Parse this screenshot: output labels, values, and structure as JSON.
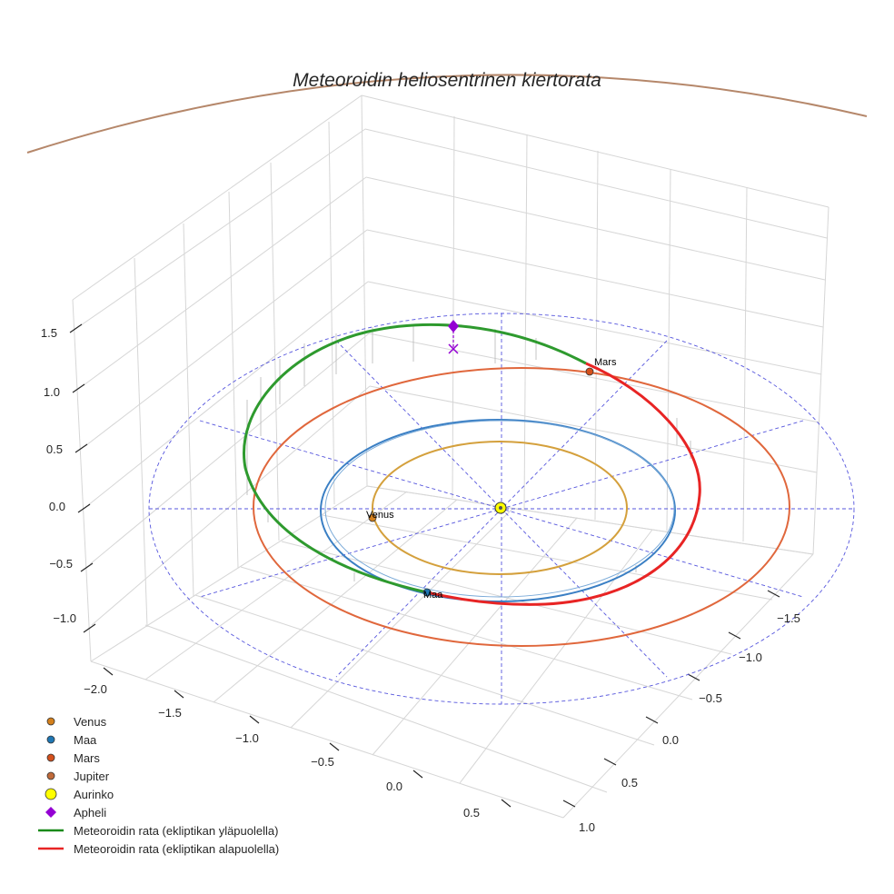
{
  "chart_data": {
    "type": "line3d",
    "title": "Meteoroidin heliosentrinen kiertorata",
    "axes": {
      "x": {
        "ticks": [
          "−2.0",
          "−1.5",
          "−1.0",
          "−0.5",
          "0.0",
          "0.5"
        ],
        "range": [
          -2.0,
          0.5
        ]
      },
      "y": {
        "ticks": [
          "−1.5",
          "−1.0",
          "−0.5",
          "0.0",
          "0.5",
          "1.0"
        ],
        "range": [
          -1.5,
          1.0
        ]
      },
      "z": {
        "ticks": [
          "1.5",
          "1.0",
          "0.5",
          "0.0",
          "−0.5",
          "−1.0"
        ],
        "range": [
          -1.0,
          1.5
        ]
      }
    },
    "series": [
      {
        "name": "Venus",
        "type": "orbit",
        "radius_au": 0.72,
        "color": "#d4a03c"
      },
      {
        "name": "Maa",
        "type": "orbit",
        "radius_au": 1.0,
        "color": "#3a7fc4"
      },
      {
        "name": "Mars",
        "type": "orbit",
        "radius_au": 1.52,
        "color": "#e0673c"
      },
      {
        "name": "Jupiter",
        "type": "orbit",
        "radius_au": 5.2,
        "color": "#b5876a"
      },
      {
        "name": "Meteoroidin rata (ekliptikan yläpuolella)",
        "color": "#2e9a2e"
      },
      {
        "name": "Meteoroidin rata (ekliptikan alapuolella)",
        "color": "#e82424"
      }
    ],
    "points": [
      {
        "name": "Aurinko",
        "x": 0,
        "y": 0,
        "z": 0,
        "color": "#ffff00"
      },
      {
        "name": "Apheli",
        "color": "#9400d3"
      }
    ],
    "annotations": [
      {
        "text": "Venus"
      },
      {
        "text": "Maa"
      },
      {
        "text": "Mars"
      }
    ],
    "legend": {
      "position": "bottom-left",
      "entries": [
        {
          "label": "Venus",
          "marker": "circle",
          "color": "#d4801c"
        },
        {
          "label": "Maa",
          "marker": "circle",
          "color": "#1f77b4"
        },
        {
          "label": "Mars",
          "marker": "circle",
          "color": "#d4501c"
        },
        {
          "label": "Jupiter",
          "marker": "circle",
          "color": "#c06a3a"
        },
        {
          "label": "Aurinko",
          "marker": "circle-large",
          "color": "#ffff00"
        },
        {
          "label": "Apheli",
          "marker": "diamond",
          "color": "#9400d3"
        },
        {
          "label": "Meteoroidin rata (ekliptikan yläpuolella)",
          "marker": "line",
          "color": "#1a8a1a"
        },
        {
          "label": "Meteoroidin rata (ekliptikan alapuolella)",
          "marker": "line",
          "color": "#e82424"
        }
      ]
    }
  }
}
